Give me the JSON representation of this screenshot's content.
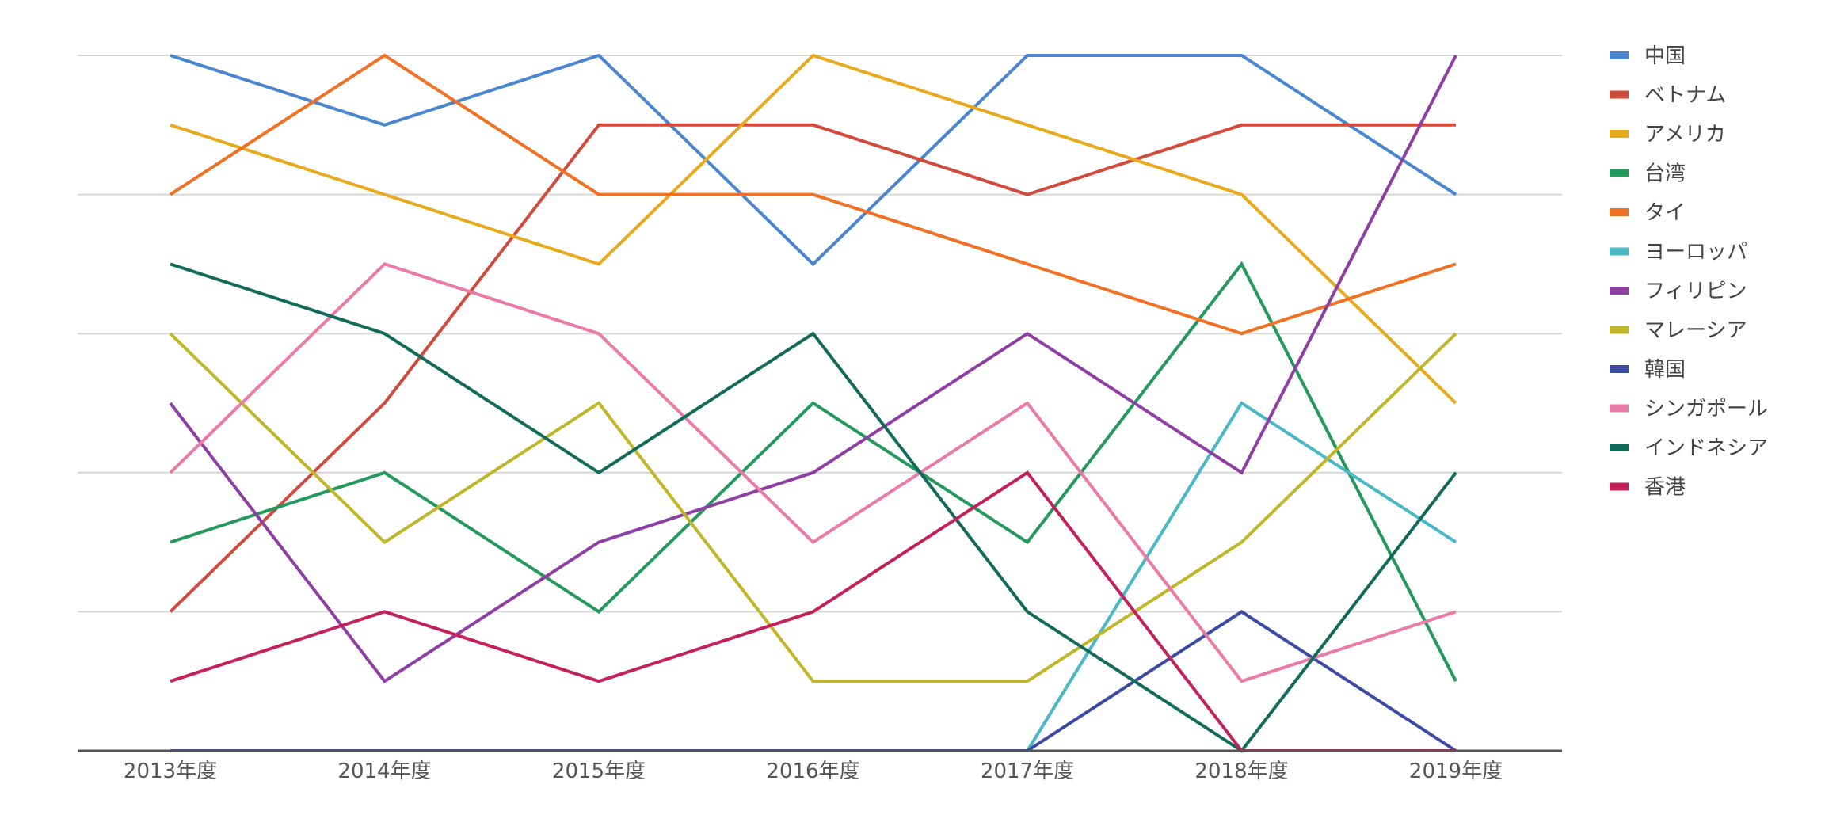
{
  "chart_data": {
    "type": "line",
    "categories": [
      "2013年度",
      "2014年度",
      "2015年度",
      "2016年度",
      "2017年度",
      "2018年度",
      "2019年度"
    ],
    "ylim": [
      0,
      10
    ],
    "grid": true,
    "legend_position": "right",
    "series": [
      {
        "name": "中国",
        "color": "#4a86d0",
        "values": [
          10,
          9,
          10,
          7,
          10,
          10,
          8
        ]
      },
      {
        "name": "ベトナム",
        "color": "#d14a3b",
        "values": [
          2,
          5,
          9,
          9,
          8,
          9,
          9
        ]
      },
      {
        "name": "アメリカ",
        "color": "#e8a91c",
        "values": [
          9,
          8,
          7,
          10,
          9,
          8,
          5
        ]
      },
      {
        "name": "台湾",
        "color": "#23995b",
        "values": [
          3,
          4,
          2,
          5,
          3,
          7,
          1
        ]
      },
      {
        "name": "タイ",
        "color": "#f07123",
        "values": [
          8,
          10,
          8,
          8,
          7,
          6,
          7
        ]
      },
      {
        "name": "ヨーロッパ",
        "color": "#47b8c4",
        "values": [
          0,
          0,
          0,
          0,
          0,
          5,
          3
        ]
      },
      {
        "name": "フィリピン",
        "color": "#8e3fa3",
        "values": [
          5,
          1,
          3,
          4,
          6,
          4,
          10
        ]
      },
      {
        "name": "マレーシア",
        "color": "#bfb62a",
        "values": [
          6,
          3,
          5,
          1,
          1,
          3,
          6
        ]
      },
      {
        "name": "韓国",
        "color": "#3b4aa3",
        "values": [
          0,
          0,
          0,
          0,
          0,
          2,
          0
        ]
      },
      {
        "name": "シンガポール",
        "color": "#ea7aa6",
        "values": [
          4,
          7,
          6,
          3,
          5,
          1,
          2
        ]
      },
      {
        "name": "インドネシア",
        "color": "#126b5a",
        "values": [
          7,
          6,
          4,
          6,
          2,
          0,
          4
        ]
      },
      {
        "name": "香港",
        "color": "#c4205a",
        "values": [
          1,
          2,
          1,
          2,
          4,
          0,
          0
        ]
      }
    ]
  }
}
